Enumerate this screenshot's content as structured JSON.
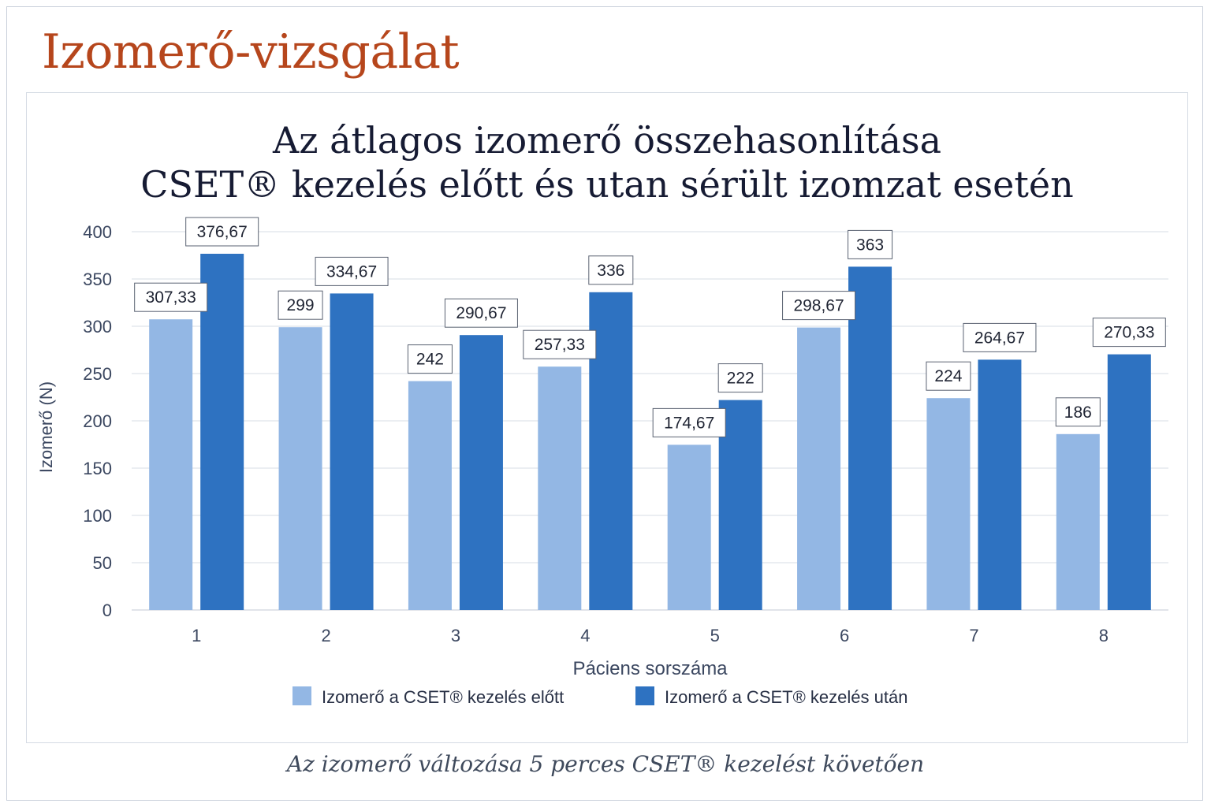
{
  "page_title": "Izomerő-vizsgálat",
  "caption": "Az izomerő változása 5 perces CSET® kezelést követően",
  "colors": {
    "title_accent": "#b6461c",
    "before": "#93b7e4",
    "after": "#2e72c1",
    "grid": "#d7dce4",
    "axis_text": "#3b4760"
  },
  "chart_data": {
    "type": "bar",
    "title_lines": [
      "Az átlagos izomerő összehasonlítása",
      "CSET® kezelés előtt és utan sérült izomzat esetén"
    ],
    "xlabel": "Páciens sorszáma",
    "ylabel": "Izomerő (N)",
    "ylim": [
      0,
      400
    ],
    "yticks": [
      0,
      50,
      100,
      150,
      200,
      250,
      300,
      350,
      400
    ],
    "grid": true,
    "legend_position": "bottom",
    "categories": [
      "1",
      "2",
      "3",
      "4",
      "5",
      "6",
      "7",
      "8"
    ],
    "series": [
      {
        "name": "Izomerő a CSET® kezelés előtt",
        "values": [
          307.33,
          299,
          242,
          257.33,
          174.67,
          298.67,
          224,
          186
        ],
        "labels": [
          "307,33",
          "299",
          "242",
          "257,33",
          "174,67",
          "298,67",
          "224",
          "186"
        ],
        "color": "#93b7e4"
      },
      {
        "name": "Izomerő a CSET® kezelés után",
        "values": [
          376.67,
          334.67,
          290.67,
          336,
          222,
          363,
          264.67,
          270.33
        ],
        "labels": [
          "376,67",
          "334,67",
          "290,67",
          "336",
          "222",
          "363",
          "264,67",
          "270,33"
        ],
        "color": "#2e72c1"
      }
    ]
  }
}
